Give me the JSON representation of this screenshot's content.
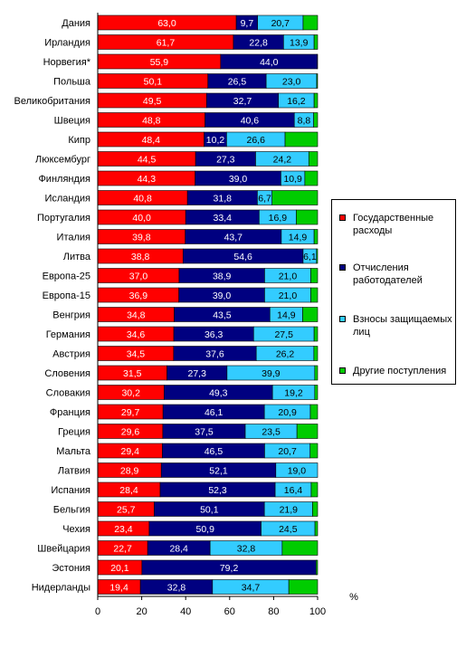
{
  "chart_data": {
    "type": "bar",
    "orientation": "horizontal",
    "stacked": true,
    "categories": [
      "Дания",
      "Ирландия",
      "Норвегия*",
      "Польша",
      "Великобритания",
      "Швеция",
      "Кипр",
      "Люксембург",
      "Финляндия",
      "Исландия",
      "Португалия",
      "Италия",
      "Литва",
      "Европа-25",
      "Европа-15",
      "Венгрия",
      "Германия",
      "Австрия",
      "Словения",
      "Словакия",
      "Франция",
      "Греция",
      "Мальта",
      "Латвия",
      "Испания",
      "Бельгия",
      "Чехия",
      "Швейцария",
      "Эстония",
      "Нидерланды"
    ],
    "series": [
      {
        "name": "Государственные расходы",
        "color": "#ff0000",
        "values": [
          63.0,
          61.7,
          55.9,
          50.1,
          49.5,
          48.8,
          48.4,
          44.5,
          44.3,
          40.8,
          40.0,
          39.8,
          38.8,
          37.0,
          36.9,
          34.8,
          34.6,
          34.5,
          31.5,
          30.2,
          29.7,
          29.6,
          29.4,
          28.9,
          28.4,
          25.7,
          23.4,
          22.7,
          20.1,
          19.4
        ],
        "labels": [
          "63,0",
          "61,7",
          "55,9",
          "50,1",
          "49,5",
          "48,8",
          "48,4",
          "44,5",
          "44,3",
          "40,8",
          "40,0",
          "39,8",
          "38,8",
          "37,0",
          "36,9",
          "34,8",
          "34,6",
          "34,5",
          "31,5",
          "30,2",
          "29,7",
          "29,6",
          "29,4",
          "28,9",
          "28,4",
          "25,7",
          "23,4",
          "22,7",
          "20,1",
          "19,4"
        ]
      },
      {
        "name": "Отчисления работодателей",
        "color": "#000080",
        "values": [
          9.7,
          22.8,
          44.0,
          26.5,
          32.7,
          40.6,
          10.2,
          27.3,
          39.0,
          31.8,
          33.4,
          43.7,
          54.6,
          38.9,
          39.0,
          43.5,
          36.3,
          37.6,
          27.3,
          49.3,
          46.1,
          37.5,
          46.5,
          52.1,
          52.3,
          50.1,
          50.9,
          28.4,
          79.2,
          32.8
        ],
        "labels": [
          "9,7",
          "22,8",
          "44,0",
          "26,5",
          "32,7",
          "40,6",
          "10,2",
          "27,3",
          "39,0",
          "31,8",
          "33,4",
          "43,7",
          "54,6",
          "38,9",
          "39,0",
          "43,5",
          "36,3",
          "37,6",
          "27,3",
          "49,3",
          "46,1",
          "37,5",
          "46,5",
          "52,1",
          "52,3",
          "50,1",
          "50,9",
          "28,4",
          "79,2",
          "32,8"
        ]
      },
      {
        "name": "Взносы защищаемых лиц",
        "color": "#33ccff",
        "values": [
          20.7,
          13.9,
          0,
          23.0,
          16.2,
          8.8,
          26.6,
          24.2,
          10.9,
          6.7,
          16.9,
          14.9,
          6.1,
          21.0,
          21.0,
          14.9,
          27.5,
          26.2,
          39.9,
          19.2,
          20.9,
          23.5,
          20.7,
          19.0,
          16.4,
          21.9,
          24.5,
          32.8,
          0,
          34.7
        ],
        "labels": [
          "20,7",
          "13,9",
          "",
          "23,0",
          "16,2",
          "8,8",
          "26,6",
          "24,2",
          "10,9",
          "6,7",
          "16,9",
          "14,9",
          "6,1",
          "21,0",
          "21,0",
          "14,9",
          "27,5",
          "26,2",
          "39,9",
          "19,2",
          "20,9",
          "23,5",
          "20,7",
          "19,0",
          "16,4",
          "21,9",
          "24,5",
          "32,8",
          "",
          "34,7"
        ]
      },
      {
        "name": "Другие поступления",
        "color": "#00cc00",
        "values": [
          6.6,
          1.6,
          0.1,
          0.4,
          1.6,
          1.8,
          14.8,
          4.0,
          5.8,
          20.7,
          9.7,
          1.6,
          0.5,
          3.1,
          3.1,
          6.8,
          1.6,
          1.7,
          1.3,
          1.3,
          3.3,
          9.4,
          3.4,
          0,
          2.9,
          2.3,
          1.2,
          16.1,
          0.7,
          13.1
        ],
        "labels": [
          "",
          "",
          "",
          "",
          "",
          "",
          "",
          "",
          "",
          "",
          "",
          "",
          "",
          "",
          "",
          "",
          "",
          "",
          "",
          "",
          "",
          "",
          "",
          "",
          "",
          "",
          "",
          "",
          "",
          ""
        ]
      }
    ],
    "xlim": [
      0,
      100
    ],
    "xticks": [
      "0",
      "20",
      "40",
      "60",
      "80",
      "100"
    ],
    "xunit": "%",
    "grid": false,
    "legend_position": "right"
  },
  "legend": {
    "items": [
      {
        "label": "Государственные расходы",
        "color": "#ff0000"
      },
      {
        "label": "Отчисления работодателей",
        "color": "#000080"
      },
      {
        "label": "Взносы защищаемых лиц",
        "color": "#33ccff"
      },
      {
        "label": "Другие поступления",
        "color": "#00cc00"
      }
    ]
  }
}
